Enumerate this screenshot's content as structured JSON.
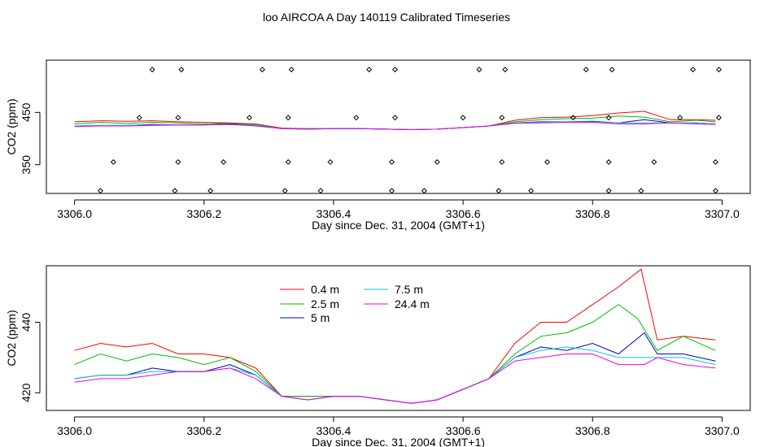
{
  "title": "loo AIRCOA A  Day 140119  Calibrated Timeseries",
  "chart_data": [
    {
      "type": "scatter",
      "panel": "top",
      "xlabel": "Day since Dec. 31, 2004 (GMT+1)",
      "ylabel": "CO2 (ppm)",
      "xlim": [
        3306.0,
        3307.0
      ],
      "ylim": [
        295,
        550
      ],
      "x_ticks": [
        3306.0,
        3306.2,
        3306.4,
        3306.6,
        3306.8,
        3307.0
      ],
      "x_tick_labels": [
        "3306.0",
        "3306.2",
        "3306.4",
        "3306.6",
        "3306.8",
        "3307.0"
      ],
      "y_ticks": [
        350,
        450
      ],
      "y_tick_labels": [
        "350",
        "450"
      ],
      "legend": "none",
      "series": [
        {
          "color": "#ff0000",
          "x": [
            3306.0,
            3306.04,
            3306.08,
            3306.12,
            3306.16,
            3306.2,
            3306.24,
            3306.28,
            3306.32,
            3306.36,
            3306.4,
            3306.44,
            3306.48,
            3306.52,
            3306.56,
            3306.6,
            3306.64,
            3306.68,
            3306.72,
            3306.76,
            3306.8,
            3306.84,
            3306.88,
            3306.92,
            3306.96,
            3306.99
          ],
          "y": [
            432,
            434,
            433,
            434,
            432,
            431,
            430,
            428,
            420,
            419,
            419,
            419,
            418,
            417,
            418,
            421,
            424,
            435,
            440,
            441,
            444,
            449,
            452,
            436,
            436,
            435
          ]
        },
        {
          "color": "#00bb00",
          "x": [
            3306.0,
            3306.04,
            3306.08,
            3306.12,
            3306.16,
            3306.2,
            3306.24,
            3306.28,
            3306.32,
            3306.36,
            3306.4,
            3306.44,
            3306.48,
            3306.52,
            3306.56,
            3306.6,
            3306.64,
            3306.68,
            3306.72,
            3306.76,
            3306.8,
            3306.84,
            3306.88,
            3306.92,
            3306.96,
            3306.99
          ],
          "y": [
            428,
            431,
            429,
            431,
            430,
            428,
            429,
            427,
            419,
            419,
            419,
            419,
            418,
            417,
            418,
            421,
            424,
            432,
            436,
            438,
            439,
            443,
            441,
            432,
            435,
            432
          ]
        },
        {
          "color": "#0000dd",
          "x": [
            3306.0,
            3306.04,
            3306.08,
            3306.12,
            3306.16,
            3306.2,
            3306.24,
            3306.28,
            3306.32,
            3306.36,
            3306.4,
            3306.44,
            3306.48,
            3306.52,
            3306.56,
            3306.6,
            3306.64,
            3306.68,
            3306.72,
            3306.76,
            3306.8,
            3306.84,
            3306.88,
            3306.92,
            3306.96,
            3306.99
          ],
          "y": [
            424,
            425,
            425,
            427,
            426,
            426,
            428,
            425,
            419,
            418,
            419,
            419,
            418,
            417,
            418,
            421,
            424,
            430,
            432,
            432,
            433,
            430,
            436,
            430,
            430,
            428
          ]
        },
        {
          "color": "#00cccc",
          "x": [
            3306.0,
            3306.04,
            3306.08,
            3306.12,
            3306.16,
            3306.2,
            3306.24,
            3306.28,
            3306.32,
            3306.36,
            3306.4,
            3306.44,
            3306.48,
            3306.52,
            3306.56,
            3306.6,
            3306.64,
            3306.68,
            3306.72,
            3306.76,
            3306.8,
            3306.84,
            3306.88,
            3306.92,
            3306.96,
            3306.99
          ],
          "y": [
            424,
            425,
            425,
            426,
            426,
            426,
            427,
            425,
            419,
            418,
            419,
            419,
            418,
            417,
            418,
            421,
            424,
            430,
            431,
            432,
            432,
            430,
            430,
            430,
            430,
            428
          ]
        },
        {
          "color": "#ee00ee",
          "x": [
            3306.0,
            3306.04,
            3306.08,
            3306.12,
            3306.16,
            3306.2,
            3306.24,
            3306.28,
            3306.32,
            3306.36,
            3306.4,
            3306.44,
            3306.48,
            3306.52,
            3306.56,
            3306.6,
            3306.64,
            3306.68,
            3306.72,
            3306.76,
            3306.8,
            3306.84,
            3306.88,
            3306.92,
            3306.96,
            3306.99
          ],
          "y": [
            423,
            424,
            424,
            425,
            426,
            426,
            427,
            424,
            419,
            418,
            419,
            419,
            418,
            417,
            418,
            421,
            424,
            429,
            430,
            431,
            431,
            428,
            428,
            430,
            428,
            427
          ]
        },
        {
          "color": "#000000",
          "marker": "diamond",
          "x": [
            3306.04,
            3306.06,
            3306.1,
            3306.12,
            3306.155,
            3306.16,
            3306.16,
            3306.165,
            3306.21,
            3306.23,
            3306.27,
            3306.29,
            3306.325,
            3306.33,
            3306.33,
            3306.335,
            3306.38,
            3306.395,
            3306.435,
            3306.455,
            3306.49,
            3306.49,
            3306.495,
            3306.495,
            3306.54,
            3306.56,
            3306.6,
            3306.625,
            3306.655,
            3306.66,
            3306.66,
            3306.665,
            3306.705,
            3306.73,
            3306.77,
            3306.79,
            3306.825,
            3306.825,
            3306.825,
            3306.83,
            3306.875,
            3306.895,
            3306.935,
            3306.955,
            3306.99,
            3306.99,
            3306.995,
            3306.995
          ],
          "y": [
            300,
            355,
            440,
            532,
            300,
            355,
            440,
            532,
            300,
            355,
            440,
            532,
            300,
            355,
            440,
            532,
            300,
            355,
            440,
            532,
            300,
            355,
            440,
            532,
            300,
            355,
            440,
            532,
            300,
            355,
            440,
            532,
            300,
            355,
            440,
            532,
            300,
            355,
            440,
            532,
            300,
            355,
            440,
            532,
            300,
            355,
            440,
            532
          ]
        }
      ]
    },
    {
      "type": "line",
      "panel": "bottom",
      "xlabel": "Day since Dec. 31, 2004 (GMT+1)",
      "ylabel": "CO2 (ppm)",
      "xlim": [
        3306.0,
        3307.0
      ],
      "ylim": [
        415,
        456
      ],
      "x_ticks": [
        3306.0,
        3306.2,
        3306.4,
        3306.6,
        3306.8,
        3307.0
      ],
      "x_tick_labels": [
        "3306.0",
        "3306.2",
        "3306.4",
        "3306.6",
        "3306.8",
        "3307.0"
      ],
      "y_ticks": [
        420,
        440
      ],
      "y_tick_labels": [
        "420",
        "440"
      ],
      "legend": "top-center",
      "series": [
        {
          "name": "0.4 m",
          "color": "#ff0000",
          "x": [
            3306.0,
            3306.04,
            3306.08,
            3306.12,
            3306.16,
            3306.2,
            3306.24,
            3306.28,
            3306.32,
            3306.36,
            3306.4,
            3306.44,
            3306.48,
            3306.52,
            3306.56,
            3306.6,
            3306.64,
            3306.68,
            3306.72,
            3306.76,
            3306.8,
            3306.84,
            3306.875,
            3306.9,
            3306.94,
            3306.99
          ],
          "y": [
            432,
            434,
            433,
            434,
            431,
            431,
            430,
            427,
            419,
            419,
            419,
            419,
            418,
            417,
            418,
            421,
            424,
            434,
            440,
            440,
            445,
            450,
            455,
            435,
            436,
            435
          ]
        },
        {
          "name": "2.5 m",
          "color": "#00bb00",
          "x": [
            3306.0,
            3306.04,
            3306.08,
            3306.12,
            3306.16,
            3306.2,
            3306.24,
            3306.28,
            3306.32,
            3306.36,
            3306.4,
            3306.44,
            3306.48,
            3306.52,
            3306.56,
            3306.6,
            3306.64,
            3306.68,
            3306.72,
            3306.76,
            3306.8,
            3306.84,
            3306.87,
            3306.9,
            3306.94,
            3306.99
          ],
          "y": [
            428,
            431,
            429,
            431,
            430,
            428,
            430,
            426,
            419,
            419,
            419,
            419,
            418,
            417,
            418,
            421,
            424,
            431,
            436,
            437,
            440,
            445,
            441,
            432,
            436,
            432
          ]
        },
        {
          "name": "5 m",
          "color": "#0000cc",
          "x": [
            3306.0,
            3306.04,
            3306.08,
            3306.12,
            3306.16,
            3306.2,
            3306.24,
            3306.28,
            3306.32,
            3306.36,
            3306.4,
            3306.44,
            3306.48,
            3306.52,
            3306.56,
            3306.6,
            3306.64,
            3306.68,
            3306.72,
            3306.76,
            3306.8,
            3306.84,
            3306.88,
            3306.9,
            3306.94,
            3306.99
          ],
          "y": [
            424,
            425,
            425,
            427,
            426,
            426,
            428,
            425,
            419,
            418,
            419,
            419,
            418,
            417,
            418,
            421,
            424,
            430,
            433,
            432,
            434,
            431,
            437,
            431,
            431,
            429
          ]
        },
        {
          "name": "7.5 m",
          "color": "#00cccc",
          "x": [
            3306.0,
            3306.04,
            3306.08,
            3306.12,
            3306.16,
            3306.2,
            3306.24,
            3306.28,
            3306.32,
            3306.36,
            3306.4,
            3306.44,
            3306.48,
            3306.52,
            3306.56,
            3306.6,
            3306.64,
            3306.68,
            3306.72,
            3306.76,
            3306.8,
            3306.84,
            3306.88,
            3306.9,
            3306.94,
            3306.99
          ],
          "y": [
            424,
            425,
            425,
            426,
            426,
            426,
            427,
            425,
            419,
            418,
            419,
            419,
            418,
            417,
            418,
            421,
            424,
            430,
            432,
            433,
            432,
            430,
            430,
            430,
            430,
            428
          ]
        },
        {
          "name": "24.4 m",
          "color": "#ee00ee",
          "x": [
            3306.0,
            3306.04,
            3306.08,
            3306.12,
            3306.16,
            3306.2,
            3306.24,
            3306.28,
            3306.32,
            3306.36,
            3306.4,
            3306.44,
            3306.48,
            3306.52,
            3306.56,
            3306.6,
            3306.64,
            3306.68,
            3306.72,
            3306.76,
            3306.8,
            3306.84,
            3306.88,
            3306.9,
            3306.94,
            3306.99
          ],
          "y": [
            423,
            424,
            424,
            425,
            426,
            426,
            427,
            424,
            419,
            418,
            419,
            419,
            418,
            417,
            418,
            421,
            424,
            429,
            430,
            431,
            431,
            428,
            428,
            430,
            428,
            427
          ]
        }
      ]
    }
  ]
}
